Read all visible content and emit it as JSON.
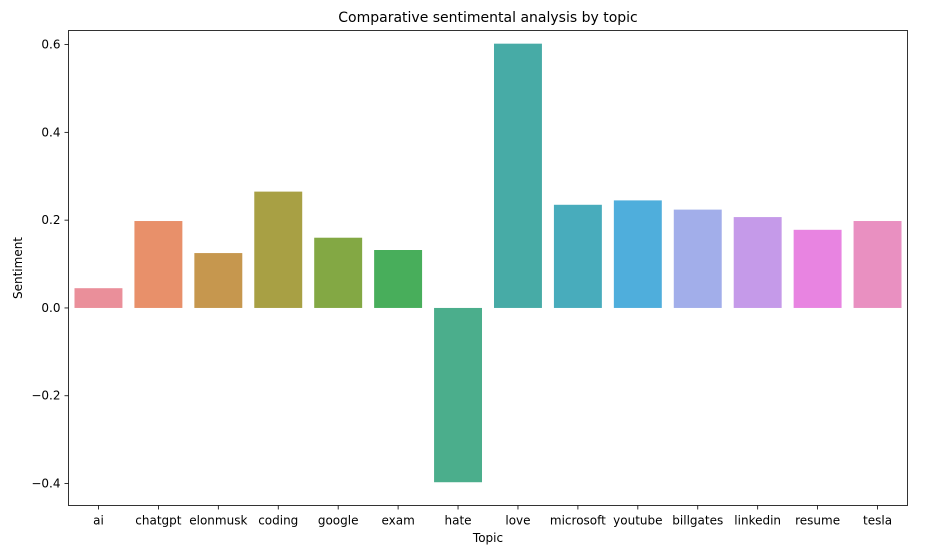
{
  "chart_data": {
    "type": "bar",
    "title": "Comparative sentimental analysis by topic",
    "xlabel": "Topic",
    "ylabel": "Sentiment",
    "categories": [
      "ai",
      "chatgpt",
      "elonmusk",
      "coding",
      "google",
      "exam",
      "hate",
      "love",
      "microsoft",
      "youtube",
      "billgates",
      "linkedin",
      "resume",
      "tesla"
    ],
    "values": [
      0.045,
      0.198,
      0.125,
      0.265,
      0.16,
      0.132,
      -0.397,
      0.602,
      0.235,
      0.245,
      0.224,
      0.207,
      0.178,
      0.198
    ],
    "colors": [
      "#ea8f9a",
      "#e8906a",
      "#c6974e",
      "#a8a044",
      "#83a844",
      "#48ae5b",
      "#4bae8c",
      "#47aba6",
      "#48acbc",
      "#4faedc",
      "#a2aeea",
      "#c59ae9",
      "#e884e1",
      "#e990c1"
    ],
    "yticks": [
      -0.4,
      -0.2,
      0.0,
      0.2,
      0.4,
      0.6
    ],
    "ytick_labels": [
      "−0.4",
      "−0.2",
      "0.0",
      "0.2",
      "0.4",
      "0.6"
    ],
    "ylim": [
      -0.45,
      0.632
    ],
    "grid": false,
    "legend": "none"
  }
}
